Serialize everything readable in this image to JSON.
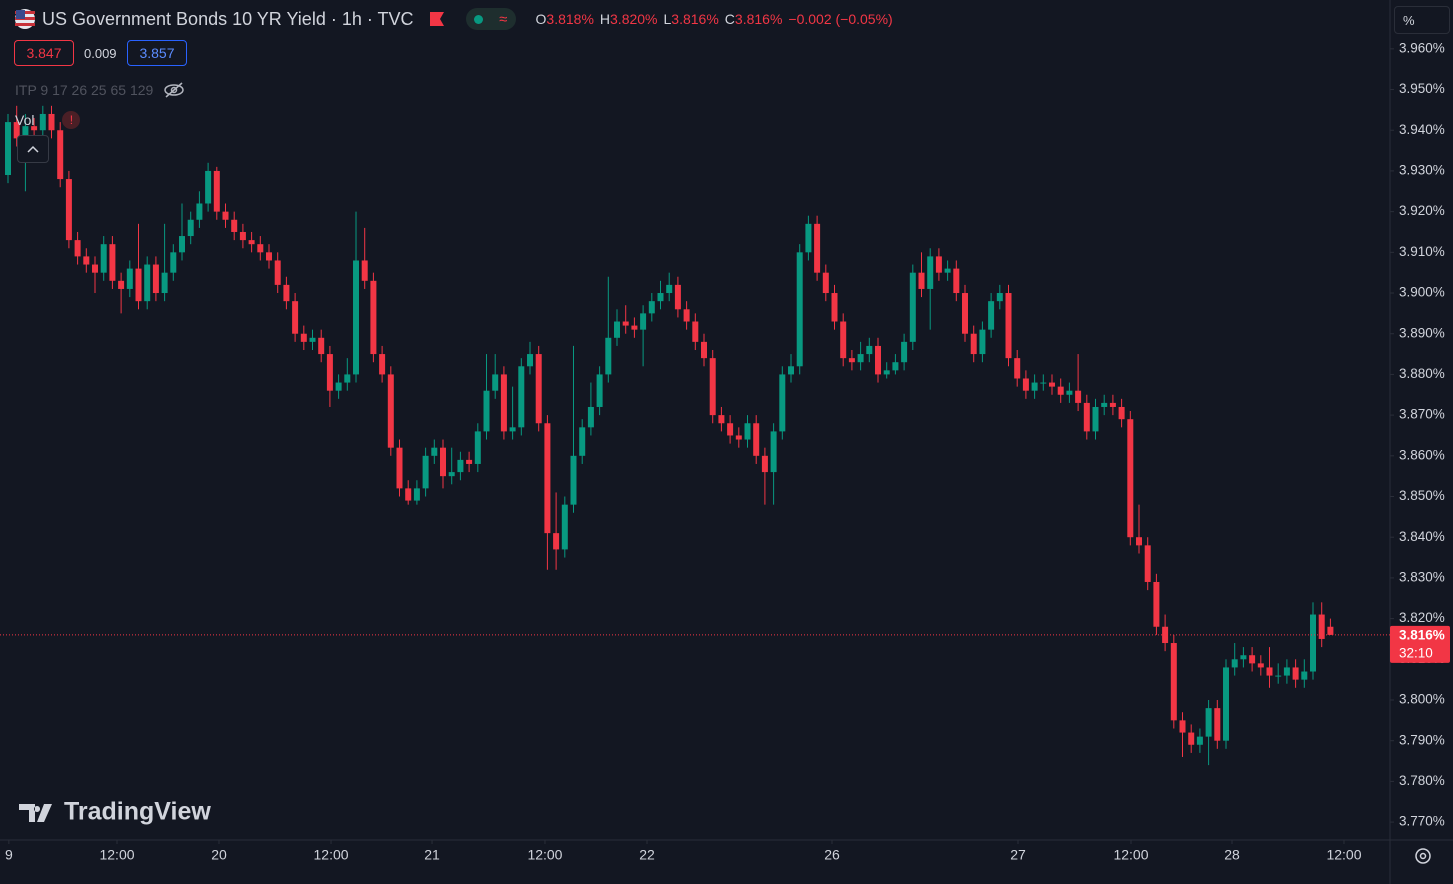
{
  "header": {
    "symbol": "US Government Bonds 10 YR Yield · 1h · TVC",
    "ohlc": [
      {
        "key": "O",
        "value": "3.818%"
      },
      {
        "key": "H",
        "value": "3.820%"
      },
      {
        "key": "L",
        "value": "3.816%"
      },
      {
        "key": "C",
        "value": "3.816%"
      }
    ],
    "change": "−0.002 (−0.05%)",
    "bid": "3.847",
    "spread": "0.009",
    "ask": "3.857",
    "indicator": "ITP 9 17 26 25 65 129",
    "volume_label": "Vol",
    "unit_button": "%"
  },
  "watermark": "TradingView",
  "chart_data": {
    "type": "candlestick",
    "up_color": "#089981",
    "down_color": "#f23645",
    "open": [
      3.929,
      3.942,
      3.938,
      3.941,
      3.94,
      3.944,
      3.94,
      3.928,
      3.913,
      3.909,
      3.907,
      3.905,
      3.912,
      3.903,
      3.901,
      3.906,
      3.898,
      3.907,
      3.9,
      3.905,
      3.91,
      3.914,
      3.918,
      3.922,
      3.93,
      3.92,
      3.918,
      3.915,
      3.913,
      3.912,
      3.91,
      3.908,
      3.902,
      3.898,
      3.89,
      3.888,
      3.889,
      3.885,
      3.876,
      3.878,
      3.88,
      3.908,
      3.903,
      3.885,
      3.88,
      3.862,
      3.852,
      3.849,
      3.852,
      3.86,
      3.862,
      3.855,
      3.856,
      3.859,
      3.858,
      3.866,
      3.876,
      3.88,
      3.866,
      3.867,
      3.882,
      3.885,
      3.868,
      3.841,
      3.837,
      3.848,
      3.86,
      3.867,
      3.872,
      3.88,
      3.889,
      3.893,
      3.892,
      3.891,
      3.895,
      3.898,
      3.9,
      3.902,
      3.896,
      3.893,
      3.888,
      3.884,
      3.87,
      3.868,
      3.865,
      3.864,
      3.868,
      3.86,
      3.856,
      3.866,
      3.88,
      3.882,
      3.91,
      3.917,
      3.905,
      3.9,
      3.893,
      3.884,
      3.883,
      3.885,
      3.887,
      3.88,
      3.881,
      3.883,
      3.888,
      3.905,
      3.901,
      3.909,
      3.905,
      3.906,
      3.9,
      3.89,
      3.885,
      3.891,
      3.898,
      3.9,
      3.884,
      3.879,
      3.876,
      3.878,
      3.878,
      3.877,
      3.875,
      3.876,
      3.873,
      3.866,
      3.872,
      3.873,
      3.872,
      3.869,
      3.84,
      3.838,
      3.829,
      3.818,
      3.814,
      3.795,
      3.792,
      3.789,
      3.791,
      3.798,
      3.79,
      3.808,
      3.81,
      3.811,
      3.809,
      3.808,
      3.806,
      3.806,
      3.808,
      3.805,
      3.807,
      3.821,
      3.818
    ],
    "high": [
      3.944,
      3.946,
      3.944,
      3.943,
      3.946,
      3.946,
      3.942,
      3.93,
      3.915,
      3.911,
      3.909,
      3.914,
      3.914,
      3.905,
      3.908,
      3.917,
      3.909,
      3.909,
      3.917,
      3.912,
      3.922,
      3.92,
      3.925,
      3.932,
      3.931,
      3.922,
      3.92,
      3.917,
      3.915,
      3.914,
      3.912,
      3.91,
      3.904,
      3.9,
      3.892,
      3.891,
      3.891,
      3.887,
      3.88,
      3.884,
      3.92,
      3.916,
      3.905,
      3.887,
      3.882,
      3.864,
      3.854,
      3.854,
      3.862,
      3.864,
      3.864,
      3.862,
      3.861,
      3.861,
      3.868,
      3.885,
      3.885,
      3.882,
      3.877,
      3.884,
      3.888,
      3.887,
      3.87,
      3.851,
      3.85,
      3.887,
      3.869,
      3.878,
      3.882,
      3.904,
      3.896,
      3.897,
      3.894,
      3.897,
      3.9,
      3.903,
      3.905,
      3.904,
      3.898,
      3.895,
      3.89,
      3.886,
      3.872,
      3.87,
      3.867,
      3.87,
      3.87,
      3.862,
      3.868,
      3.882,
      3.885,
      3.912,
      3.919,
      3.919,
      3.907,
      3.902,
      3.895,
      3.886,
      3.888,
      3.889,
      3.889,
      3.883,
      3.885,
      3.89,
      3.907,
      3.91,
      3.911,
      3.911,
      3.908,
      3.908,
      3.902,
      3.892,
      3.893,
      3.9,
      3.902,
      3.902,
      3.886,
      3.881,
      3.88,
      3.88,
      3.88,
      3.879,
      3.878,
      3.885,
      3.875,
      3.874,
      3.875,
      3.875,
      3.874,
      3.871,
      3.848,
      3.84,
      3.831,
      3.821,
      3.816,
      3.797,
      3.794,
      3.793,
      3.8,
      3.8,
      3.81,
      3.814,
      3.813,
      3.813,
      3.811,
      3.813,
      3.809,
      3.81,
      3.81,
      3.81,
      3.824,
      3.824,
      3.82
    ],
    "low": [
      3.927,
      3.936,
      3.925,
      3.938,
      3.938,
      3.938,
      3.926,
      3.911,
      3.907,
      3.905,
      3.9,
      3.903,
      3.901,
      3.895,
      3.899,
      3.896,
      3.896,
      3.898,
      3.898,
      3.903,
      3.908,
      3.912,
      3.916,
      3.92,
      3.918,
      3.916,
      3.913,
      3.911,
      3.91,
      3.908,
      3.906,
      3.9,
      3.896,
      3.888,
      3.886,
      3.886,
      3.883,
      3.872,
      3.874,
      3.876,
      3.878,
      3.901,
      3.883,
      3.878,
      3.86,
      3.85,
      3.848,
      3.848,
      3.85,
      3.858,
      3.852,
      3.853,
      3.854,
      3.856,
      3.856,
      3.864,
      3.874,
      3.864,
      3.864,
      3.865,
      3.88,
      3.866,
      3.832,
      3.832,
      3.835,
      3.846,
      3.858,
      3.865,
      3.87,
      3.878,
      3.887,
      3.89,
      3.889,
      3.882,
      3.893,
      3.896,
      3.898,
      3.894,
      3.891,
      3.886,
      3.882,
      3.868,
      3.866,
      3.863,
      3.862,
      3.862,
      3.858,
      3.848,
      3.848,
      3.864,
      3.878,
      3.88,
      3.908,
      3.903,
      3.898,
      3.891,
      3.882,
      3.881,
      3.881,
      3.883,
      3.878,
      3.879,
      3.88,
      3.881,
      3.886,
      3.899,
      3.891,
      3.903,
      3.903,
      3.898,
      3.888,
      3.883,
      3.883,
      3.889,
      3.896,
      3.882,
      3.877,
      3.874,
      3.874,
      3.876,
      3.875,
      3.873,
      3.873,
      3.871,
      3.864,
      3.864,
      3.87,
      3.87,
      3.867,
      3.838,
      3.836,
      3.827,
      3.816,
      3.812,
      3.793,
      3.786,
      3.787,
      3.787,
      3.784,
      3.788,
      3.788,
      3.806,
      3.808,
      3.807,
      3.806,
      3.803,
      3.804,
      3.804,
      3.803,
      3.803,
      3.805,
      3.813,
      3.816
    ],
    "close": [
      3.942,
      3.938,
      3.941,
      3.94,
      3.944,
      3.94,
      3.928,
      3.913,
      3.909,
      3.907,
      3.905,
      3.912,
      3.903,
      3.901,
      3.906,
      3.898,
      3.907,
      3.9,
      3.905,
      3.91,
      3.914,
      3.918,
      3.922,
      3.93,
      3.92,
      3.918,
      3.915,
      3.913,
      3.912,
      3.91,
      3.908,
      3.902,
      3.898,
      3.89,
      3.888,
      3.889,
      3.885,
      3.876,
      3.878,
      3.88,
      3.908,
      3.903,
      3.885,
      3.88,
      3.862,
      3.852,
      3.849,
      3.852,
      3.86,
      3.862,
      3.855,
      3.856,
      3.859,
      3.858,
      3.866,
      3.876,
      3.88,
      3.866,
      3.867,
      3.882,
      3.885,
      3.868,
      3.841,
      3.837,
      3.848,
      3.86,
      3.867,
      3.872,
      3.88,
      3.889,
      3.893,
      3.892,
      3.891,
      3.895,
      3.898,
      3.9,
      3.902,
      3.896,
      3.893,
      3.888,
      3.884,
      3.87,
      3.868,
      3.865,
      3.864,
      3.868,
      3.86,
      3.856,
      3.866,
      3.88,
      3.882,
      3.91,
      3.917,
      3.905,
      3.9,
      3.893,
      3.884,
      3.883,
      3.885,
      3.887,
      3.88,
      3.881,
      3.883,
      3.888,
      3.905,
      3.901,
      3.909,
      3.905,
      3.906,
      3.9,
      3.89,
      3.885,
      3.891,
      3.898,
      3.9,
      3.884,
      3.879,
      3.876,
      3.878,
      3.878,
      3.877,
      3.875,
      3.876,
      3.873,
      3.866,
      3.872,
      3.873,
      3.872,
      3.869,
      3.84,
      3.838,
      3.829,
      3.818,
      3.814,
      3.795,
      3.792,
      3.789,
      3.791,
      3.798,
      3.79,
      3.808,
      3.81,
      3.811,
      3.809,
      3.808,
      3.806,
      3.806,
      3.808,
      3.805,
      3.807,
      3.821,
      3.815,
      3.816
    ],
    "xlim": [
      -0.92,
      158.85
    ],
    "xticks": [
      {
        "value": 0.1,
        "label": "9"
      },
      {
        "value": 12.53,
        "label": "12:00"
      },
      {
        "value": 24.25,
        "label": "20"
      },
      {
        "value": 37.13,
        "label": "12:00"
      },
      {
        "value": 48.74,
        "label": "21"
      },
      {
        "value": 61.72,
        "label": "12:00"
      },
      {
        "value": 73.45,
        "label": "22"
      },
      {
        "value": 94.71,
        "label": "26"
      },
      {
        "value": 116.09,
        "label": "27"
      },
      {
        "value": 129.08,
        "label": "12:00"
      },
      {
        "value": 140.69,
        "label": "28"
      },
      {
        "value": 153.56,
        "label": "12:00"
      }
    ],
    "ylim": [
      3.7656,
      3.972
    ],
    "yticks": [
      {
        "value": 3.77,
        "label": "3.770%"
      },
      {
        "value": 3.78,
        "label": "3.780%"
      },
      {
        "value": 3.79,
        "label": "3.790%"
      },
      {
        "value": 3.8,
        "label": "3.800%"
      },
      {
        "value": 3.81,
        "label": "3.810%"
      },
      {
        "value": 3.82,
        "label": "3.820%"
      },
      {
        "value": 3.83,
        "label": "3.830%"
      },
      {
        "value": 3.84,
        "label": "3.840%"
      },
      {
        "value": 3.85,
        "label": "3.850%"
      },
      {
        "value": 3.86,
        "label": "3.860%"
      },
      {
        "value": 3.87,
        "label": "3.870%"
      },
      {
        "value": 3.88,
        "label": "3.880%"
      },
      {
        "value": 3.89,
        "label": "3.890%"
      },
      {
        "value": 3.9,
        "label": "3.900%"
      },
      {
        "value": 3.91,
        "label": "3.910%"
      },
      {
        "value": 3.92,
        "label": "3.920%"
      },
      {
        "value": 3.93,
        "label": "3.930%"
      },
      {
        "value": 3.94,
        "label": "3.940%"
      },
      {
        "value": 3.95,
        "label": "3.950%"
      },
      {
        "value": 3.96,
        "label": "3.960%"
      }
    ],
    "grid": false,
    "last": {
      "value": 3.816,
      "label": "3.816%",
      "countdown": "32:10",
      "color": "#f23645"
    }
  }
}
